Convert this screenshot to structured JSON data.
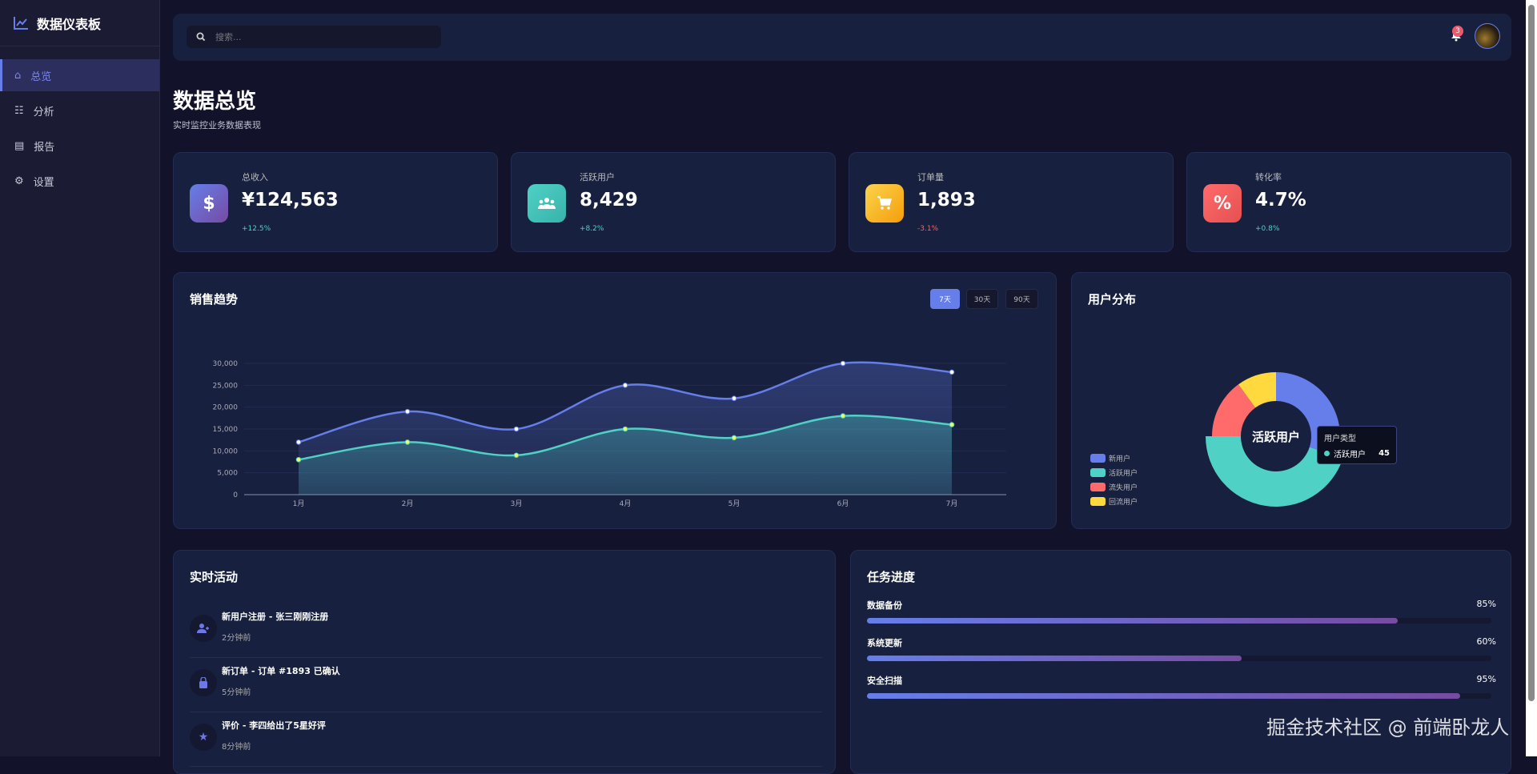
{
  "app": {
    "title": "数据仪表板",
    "logo_icon": "chart-line-icon"
  },
  "sidebar": {
    "items": [
      {
        "label": "总览",
        "icon": "home-icon",
        "active": true
      },
      {
        "label": "分析",
        "icon": "chart-bar-icon"
      },
      {
        "label": "报告",
        "icon": "file-icon"
      },
      {
        "label": "设置",
        "icon": "gear-icon"
      }
    ]
  },
  "header": {
    "search_placeholder": "搜索...",
    "notifications": "3"
  },
  "page": {
    "title": "数据总览",
    "subtitle": "实时监控业务数据表现"
  },
  "stats": [
    {
      "label": "总收入",
      "value": "¥124,563",
      "change": "+12.5%",
      "icon": "$",
      "color": "#764ba2",
      "positive": true
    },
    {
      "label": "活跃用户",
      "value": "8,429",
      "change": "+8.2%",
      "icon": "users",
      "color": "#4fd1c5",
      "positive": true
    },
    {
      "label": "订单量",
      "value": "1,893",
      "change": "-3.1%",
      "icon": "cart",
      "color": "#fbbf24",
      "positive": false
    },
    {
      "label": "转化率",
      "value": "4.7%",
      "change": "+0.8%",
      "icon": "%",
      "color": "#f56565",
      "positive": true
    }
  ],
  "sales": {
    "title": "销售趋势",
    "ranges": [
      "7天",
      "30天",
      "90天"
    ],
    "active_range": "7天"
  },
  "users": {
    "title": "用户分布",
    "center_label": "活跃用户",
    "tooltip": {
      "title": "用户类型",
      "name": "活跃用户",
      "value": "45"
    }
  },
  "chart_data": [
    {
      "type": "area",
      "categories": [
        "1月",
        "2月",
        "3月",
        "4月",
        "5月",
        "6月",
        "7月"
      ],
      "series": [
        {
          "values": [
            12000,
            19000,
            15000,
            25000,
            22000,
            30000,
            28000
          ],
          "color": "#667eea"
        },
        {
          "values": [
            8000,
            12000,
            9000,
            15000,
            13000,
            18000,
            16000
          ],
          "color": "#4fd1c5"
        }
      ],
      "yticks": [
        "0",
        "5,000",
        "10,000",
        "15,000",
        "20,000",
        "25,000",
        "30,000"
      ],
      "ylim": [
        0,
        30000
      ],
      "grid": true
    },
    {
      "type": "pie",
      "donut": true,
      "categories": [
        "新用户",
        "活跃用户",
        "流失用户",
        "回流用户"
      ],
      "values": [
        30,
        45,
        15,
        10
      ],
      "colors": [
        "#667eea",
        "#4fd1c5",
        "#ff6b6b",
        "#ffd93d"
      ],
      "legend": "bottom-left"
    }
  ],
  "activity": {
    "title": "实时活动",
    "items": [
      {
        "title": "新用户注册 - 张三刚刚注册",
        "time": "2分钟前",
        "icon": "user-plus-icon"
      },
      {
        "title": "新订单 - 订单 #1893 已确认",
        "time": "5分钟前",
        "icon": "shopping-bag-icon"
      },
      {
        "title": "评价 - 李四给出了5星好评",
        "time": "8分钟前",
        "icon": "star-icon"
      }
    ]
  },
  "tasks": {
    "title": "任务进度",
    "items": [
      {
        "label": "数据备份",
        "percent": 85,
        "percent_label": "85%"
      },
      {
        "label": "系统更新",
        "percent": 60,
        "percent_label": "60%"
      },
      {
        "label": "安全扫描",
        "percent": 95,
        "percent_label": "95%"
      }
    ]
  },
  "watermark": "掘金技术社区 @ 前端卧龙人"
}
